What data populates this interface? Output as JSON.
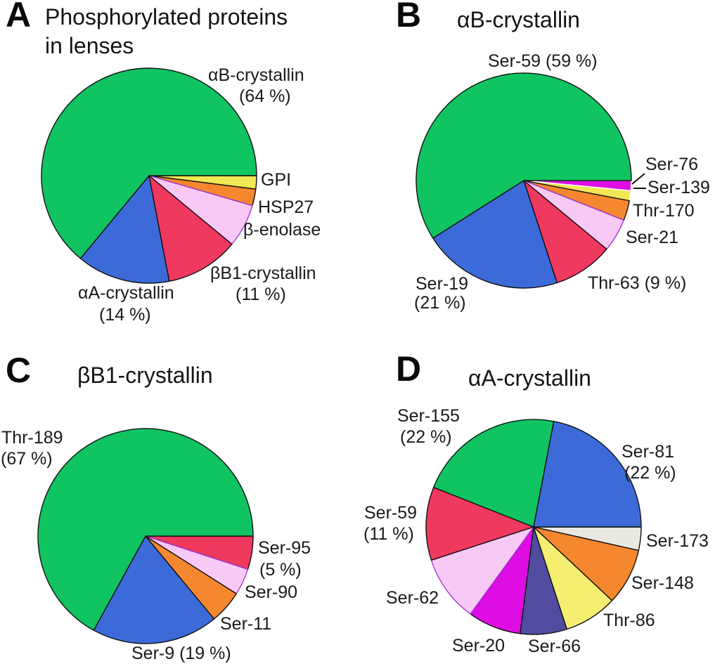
{
  "panels": {
    "a": {
      "letter": "A",
      "title_line1": "Phosphorylated proteins",
      "title_line2": "in lenses",
      "labels": {
        "ab": "αB-crystallin",
        "ab_pct": "(64 %)",
        "gpi": "GPI",
        "hsp27": "HSP27",
        "enolase": "β-enolase",
        "bb1": "βB1-crystallin",
        "bb1_pct": "(11 %)",
        "aa": "αA-crystallin",
        "aa_pct": "(14 %)"
      }
    },
    "b": {
      "letter": "B",
      "title": "αB-crystallin",
      "labels": {
        "ser59": "Ser-59 (59 %)",
        "ser76": "Ser-76",
        "ser139": "Ser-139",
        "thr170": "Thr-170",
        "ser21": "Ser-21",
        "thr63": "Thr-63 (9 %)",
        "ser19_line1": "Ser-19",
        "ser19_line2": "(21 %)"
      }
    },
    "c": {
      "letter": "C",
      "title": "βB1-crystallin",
      "labels": {
        "thr189_line1": "Thr-189",
        "thr189_line2": "(67 %)",
        "ser95": "Ser-95",
        "ser95_pct": "(5 %)",
        "ser90": "Ser-90",
        "ser11": "Ser-11",
        "ser9": "Ser-9 (19 %)"
      }
    },
    "d": {
      "letter": "D",
      "title": "αA-crystallin",
      "labels": {
        "ser155_line1": "Ser-155",
        "ser155_line2": "(22 %)",
        "ser81_line1": "Ser-81",
        "ser81_line2": "(22 %)",
        "ser173": "Ser-173",
        "ser148": "Ser-148",
        "thr86": "Thr-86",
        "ser66": "Ser-66",
        "ser20": "Ser-20",
        "ser62": "Ser-62",
        "ser59_line1": "Ser-59",
        "ser59_line2": "(11 %)"
      }
    }
  },
  "chart_data": [
    {
      "type": "pie",
      "panel": "A",
      "title": "Phosphorylated proteins in lenses",
      "unit": "%",
      "direction": "clockwise",
      "start_angle_deg": 0,
      "slices": [
        {
          "label": "GPI",
          "value": 2,
          "color": "#F2E754"
        },
        {
          "label": "HSP27",
          "value": 2.5,
          "color": "#F5872E"
        },
        {
          "label": "β-enolase",
          "value": 6.5,
          "color": "#F9C9F6",
          "stroke": "#A43BD4"
        },
        {
          "label": "βB1-crystallin",
          "value": 11,
          "color": "#F0395F"
        },
        {
          "label": "αA-crystallin",
          "value": 14,
          "color": "#3C6BD9"
        },
        {
          "label": "αB-crystallin",
          "value": 64,
          "color": "#11C462"
        }
      ]
    },
    {
      "type": "pie",
      "panel": "B",
      "title": "αB-crystallin",
      "unit": "%",
      "direction": "clockwise",
      "start_angle_deg": 0,
      "slices": [
        {
          "label": "Ser-76",
          "value": 1.5,
          "color": "#DD0DE4",
          "stroke": "#FFFFFF"
        },
        {
          "label": "Ser-139",
          "value": 1.5,
          "color": "#F2E754",
          "stroke": "#FFFFFF"
        },
        {
          "label": "Thr-170",
          "value": 3,
          "color": "#F5872E"
        },
        {
          "label": "Ser-21",
          "value": 5,
          "color": "#F9C9F6",
          "stroke": "#A43BD4"
        },
        {
          "label": "Thr-63",
          "value": 9,
          "color": "#F0395F"
        },
        {
          "label": "Ser-19",
          "value": 21,
          "color": "#3C6BD9"
        },
        {
          "label": "Ser-59",
          "value": 59,
          "color": "#11C462"
        }
      ]
    },
    {
      "type": "pie",
      "panel": "C",
      "title": "βB1-crystallin",
      "unit": "%",
      "direction": "clockwise",
      "start_angle_deg": 0,
      "slices": [
        {
          "label": "Ser-95",
          "value": 5,
          "color": "#F0395F"
        },
        {
          "label": "Ser-90",
          "value": 4,
          "color": "#F9C9F6",
          "stroke": "#A43BD4"
        },
        {
          "label": "Ser-11",
          "value": 5,
          "color": "#F5872E"
        },
        {
          "label": "Ser-9",
          "value": 19,
          "color": "#3C6BD9"
        },
        {
          "label": "Thr-189",
          "value": 67,
          "color": "#11C462"
        }
      ]
    },
    {
      "type": "pie",
      "panel": "D",
      "title": "αA-crystallin",
      "unit": "%",
      "direction": "clockwise",
      "start_angle_deg": 0,
      "slices": [
        {
          "label": "Ser-173",
          "value": 3.5,
          "color": "#E9E9E1"
        },
        {
          "label": "Ser-148",
          "value": 8.5,
          "color": "#F5872E"
        },
        {
          "label": "Thr-86",
          "value": 8,
          "color": "#F5EE71"
        },
        {
          "label": "Ser-66",
          "value": 7,
          "color": "#514C9F"
        },
        {
          "label": "Ser-20",
          "value": 8,
          "color": "#DD0DE4"
        },
        {
          "label": "Ser-62",
          "value": 10,
          "color": "#F9C9F6",
          "stroke": "#A43BD4"
        },
        {
          "label": "Ser-59",
          "value": 11,
          "color": "#F0395F"
        },
        {
          "label": "Ser-155",
          "value": 22,
          "color": "#11C462"
        },
        {
          "label": "Ser-81",
          "value": 22,
          "color": "#3C6BD9"
        }
      ]
    }
  ]
}
